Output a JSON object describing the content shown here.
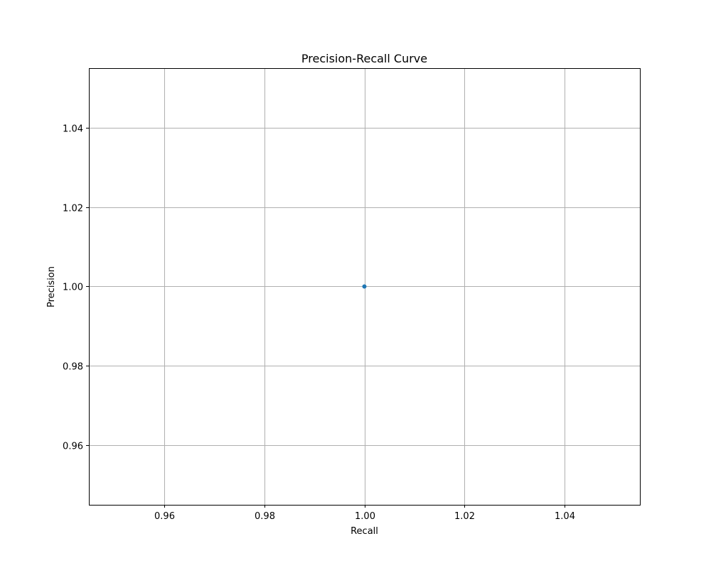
{
  "chart_data": {
    "type": "line",
    "title": "Precision-Recall Curve",
    "xlabel": "Recall",
    "ylabel": "Precision",
    "xlim": [
      0.945,
      1.055
    ],
    "ylim": [
      0.945,
      1.055
    ],
    "xticks": [
      0.96,
      0.98,
      1.0,
      1.02,
      1.04
    ],
    "xtick_labels": [
      "0.96",
      "0.98",
      "1.00",
      "1.02",
      "1.04"
    ],
    "yticks": [
      0.96,
      0.98,
      1.0,
      1.02,
      1.04
    ],
    "ytick_labels": [
      "0.96",
      "0.98",
      "1.00",
      "1.02",
      "1.04"
    ],
    "grid": true,
    "legend": "none",
    "series": [
      {
        "x": [
          1.0
        ],
        "y": [
          1.0
        ],
        "color": "#1f77b4",
        "marker": "circle"
      }
    ]
  }
}
